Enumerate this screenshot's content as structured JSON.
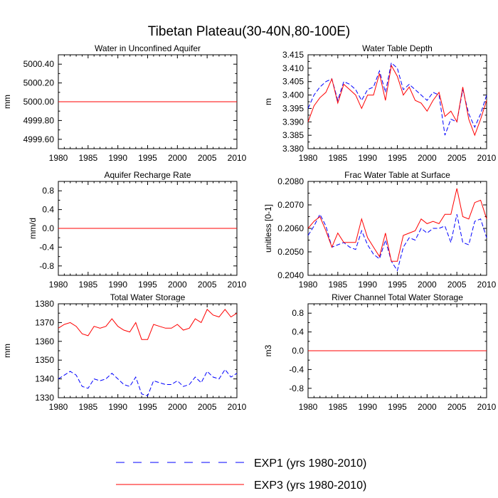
{
  "figure": {
    "title": "Tibetan Plateau(30-40N,80-100E)",
    "legend": [
      {
        "label": "EXP1 (yrs 1980-2010)",
        "color": "#0000ff",
        "style": "dashed"
      },
      {
        "label": "EXP3 (yrs 1980-2010)",
        "color": "#ff0000",
        "style": "solid"
      }
    ],
    "colors": {
      "exp1": "#0000ff",
      "exp3": "#ff0000"
    }
  },
  "chart_data": [
    {
      "type": "line",
      "title": "Water in Unconfined Aquifer",
      "xlabel": "",
      "ylabel": "mm",
      "xlim": [
        1980,
        2010
      ],
      "ylim": [
        4999.5,
        5000.5
      ],
      "xticks": [
        1980,
        1985,
        1990,
        1995,
        2000,
        2005,
        2010
      ],
      "yticks": [
        4999.6,
        4999.8,
        5000.0,
        5000.2,
        5000.4
      ],
      "ytick_labels": [
        "4999.60",
        "4999.80",
        "5000.00",
        "5000.20",
        "5000.40"
      ],
      "x": [
        1980,
        1981,
        1982,
        1983,
        1984,
        1985,
        1986,
        1987,
        1988,
        1989,
        1990,
        1991,
        1992,
        1993,
        1994,
        1995,
        1996,
        1997,
        1998,
        1999,
        2000,
        2001,
        2002,
        2003,
        2004,
        2005,
        2006,
        2007,
        2008,
        2009,
        2010
      ],
      "series": [
        {
          "name": "EXP1 (yrs 1980-2010)",
          "values": [
            5000,
            5000,
            5000,
            5000,
            5000,
            5000,
            5000,
            5000,
            5000,
            5000,
            5000,
            5000,
            5000,
            5000,
            5000,
            5000,
            5000,
            5000,
            5000,
            5000,
            5000,
            5000,
            5000,
            5000,
            5000,
            5000,
            5000,
            5000,
            5000,
            5000,
            5000
          ]
        },
        {
          "name": "EXP3 (yrs 1980-2010)",
          "values": [
            5000,
            5000,
            5000,
            5000,
            5000,
            5000,
            5000,
            5000,
            5000,
            5000,
            5000,
            5000,
            5000,
            5000,
            5000,
            5000,
            5000,
            5000,
            5000,
            5000,
            5000,
            5000,
            5000,
            5000,
            5000,
            5000,
            5000,
            5000,
            5000,
            5000,
            5000
          ]
        }
      ]
    },
    {
      "type": "line",
      "title": "Water Table Depth",
      "xlabel": "",
      "ylabel": "m",
      "xlim": [
        1980,
        2010
      ],
      "ylim": [
        3.38,
        3.415
      ],
      "xticks": [
        1980,
        1985,
        1990,
        1995,
        2000,
        2005,
        2010
      ],
      "yticks": [
        3.38,
        3.385,
        3.39,
        3.395,
        3.4,
        3.405,
        3.41,
        3.415
      ],
      "ytick_labels": [
        "3.380",
        "3.385",
        "3.390",
        "3.395",
        "3.400",
        "3.405",
        "3.410",
        "3.415"
      ],
      "x": [
        1980,
        1981,
        1982,
        1983,
        1984,
        1985,
        1986,
        1987,
        1988,
        1989,
        1990,
        1991,
        1992,
        1993,
        1994,
        1995,
        1996,
        1997,
        1998,
        1999,
        2000,
        2001,
        2002,
        2003,
        2004,
        2005,
        2006,
        2007,
        2008,
        2009,
        2010
      ],
      "series": [
        {
          "name": "EXP1 (yrs 1980-2010)",
          "values": [
            3.395,
            3.4,
            3.403,
            3.405,
            3.406,
            3.398,
            3.405,
            3.404,
            3.402,
            3.398,
            3.402,
            3.403,
            3.409,
            3.401,
            3.412,
            3.41,
            3.402,
            3.404,
            3.402,
            3.4,
            3.398,
            3.401,
            3.4,
            3.385,
            3.391,
            3.39,
            3.402,
            3.393,
            3.388,
            3.393,
            3.4
          ]
        },
        {
          "name": "EXP3 (yrs 1980-2010)",
          "values": [
            3.39,
            3.396,
            3.399,
            3.401,
            3.406,
            3.397,
            3.404,
            3.402,
            3.4,
            3.395,
            3.4,
            3.4,
            3.408,
            3.398,
            3.411,
            3.407,
            3.4,
            3.403,
            3.398,
            3.397,
            3.394,
            3.398,
            3.401,
            3.392,
            3.394,
            3.39,
            3.403,
            3.391,
            3.385,
            3.391,
            3.398
          ]
        }
      ]
    },
    {
      "type": "line",
      "title": "Aquifer Recharge Rate",
      "xlabel": "",
      "ylabel": "mm/d",
      "xlim": [
        1980,
        2010
      ],
      "ylim": [
        -1.0,
        1.0
      ],
      "xticks": [
        1980,
        1985,
        1990,
        1995,
        2000,
        2005,
        2010
      ],
      "yticks": [
        -0.8,
        -0.4,
        0.0,
        0.4,
        0.8
      ],
      "ytick_labels": [
        "-0.8",
        "-0.4",
        "0.0",
        "0.4",
        "0.8"
      ],
      "x": [
        1980,
        1981,
        1982,
        1983,
        1984,
        1985,
        1986,
        1987,
        1988,
        1989,
        1990,
        1991,
        1992,
        1993,
        1994,
        1995,
        1996,
        1997,
        1998,
        1999,
        2000,
        2001,
        2002,
        2003,
        2004,
        2005,
        2006,
        2007,
        2008,
        2009,
        2010
      ],
      "series": [
        {
          "name": "EXP1 (yrs 1980-2010)",
          "values": [
            0,
            0,
            0,
            0,
            0,
            0,
            0,
            0,
            0,
            0,
            0,
            0,
            0,
            0,
            0,
            0,
            0,
            0,
            0,
            0,
            0,
            0,
            0,
            0,
            0,
            0,
            0,
            0,
            0,
            0,
            0
          ]
        },
        {
          "name": "EXP3 (yrs 1980-2010)",
          "values": [
            0,
            0,
            0,
            0,
            0,
            0,
            0,
            0,
            0,
            0,
            0,
            0,
            0,
            0,
            0,
            0,
            0,
            0,
            0,
            0,
            0,
            0,
            0,
            0,
            0,
            0,
            0,
            0,
            0,
            0,
            0
          ]
        }
      ]
    },
    {
      "type": "line",
      "title": "Frac Water Table at Surface",
      "xlabel": "",
      "ylabel": "unitless [0-1]",
      "xlim": [
        1980,
        2010
      ],
      "ylim": [
        0.204,
        0.208
      ],
      "xticks": [
        1980,
        1985,
        1990,
        1995,
        2000,
        2005,
        2010
      ],
      "yticks": [
        0.204,
        0.205,
        0.206,
        0.207,
        0.208
      ],
      "ytick_labels": [
        "0.2040",
        "0.2050",
        "0.2060",
        "0.2070",
        "0.2080"
      ],
      "x": [
        1980,
        1981,
        1982,
        1983,
        1984,
        1985,
        1986,
        1987,
        1988,
        1989,
        1990,
        1991,
        1992,
        1993,
        1994,
        1995,
        1996,
        1997,
        1998,
        1999,
        2000,
        2001,
        2002,
        2003,
        2004,
        2005,
        2006,
        2007,
        2008,
        2009,
        2010
      ],
      "series": [
        {
          "name": "EXP1 (yrs 1980-2010)",
          "values": [
            0.2057,
            0.2061,
            0.2066,
            0.2061,
            0.2052,
            0.2053,
            0.2054,
            0.2052,
            0.2051,
            0.2059,
            0.2053,
            0.2049,
            0.2047,
            0.2055,
            0.2046,
            0.2042,
            0.2052,
            0.2056,
            0.2055,
            0.206,
            0.2058,
            0.206,
            0.206,
            0.2061,
            0.2054,
            0.2066,
            0.2054,
            0.2053,
            0.2063,
            0.2064,
            0.2056
          ]
        },
        {
          "name": "EXP3 (yrs 1980-2010)",
          "values": [
            0.206,
            0.2063,
            0.2065,
            0.2059,
            0.2052,
            0.2058,
            0.2054,
            0.2054,
            0.2054,
            0.2064,
            0.2056,
            0.2052,
            0.2048,
            0.2058,
            0.2046,
            0.2046,
            0.2057,
            0.2058,
            0.2059,
            0.2064,
            0.2062,
            0.2063,
            0.2062,
            0.2066,
            0.2066,
            0.2077,
            0.2065,
            0.2064,
            0.2071,
            0.2072,
            0.2064
          ]
        }
      ]
    },
    {
      "type": "line",
      "title": "Total Water Storage",
      "xlabel": "",
      "ylabel": "mm",
      "xlim": [
        1980,
        2010
      ],
      "ylim": [
        1330,
        1380
      ],
      "xticks": [
        1980,
        1985,
        1990,
        1995,
        2000,
        2005,
        2010
      ],
      "yticks": [
        1330,
        1340,
        1350,
        1360,
        1370,
        1380
      ],
      "ytick_labels": [
        "1330",
        "1340",
        "1350",
        "1360",
        "1370",
        "1380"
      ],
      "x": [
        1980,
        1981,
        1982,
        1983,
        1984,
        1985,
        1986,
        1987,
        1988,
        1989,
        1990,
        1991,
        1992,
        1993,
        1994,
        1995,
        1996,
        1997,
        1998,
        1999,
        2000,
        2001,
        2002,
        2003,
        2004,
        2005,
        2006,
        2007,
        2008,
        2009,
        2010
      ],
      "series": [
        {
          "name": "EXP1 (yrs 1980-2010)",
          "values": [
            1340,
            1342,
            1344,
            1342,
            1336,
            1335,
            1340,
            1339,
            1340,
            1343,
            1340,
            1337,
            1336,
            1341,
            1332,
            1331,
            1339,
            1338,
            1337,
            1337,
            1339,
            1336,
            1337,
            1341,
            1338,
            1344,
            1341,
            1340,
            1345,
            1341,
            1343
          ]
        },
        {
          "name": "EXP3 (yrs 1980-2010)",
          "values": [
            1367,
            1369,
            1370,
            1368,
            1364,
            1363,
            1368,
            1367,
            1368,
            1372,
            1368,
            1366,
            1365,
            1370,
            1361,
            1361,
            1369,
            1368,
            1367,
            1367,
            1369,
            1366,
            1367,
            1372,
            1370,
            1377,
            1374,
            1373,
            1377,
            1373,
            1375
          ]
        }
      ]
    },
    {
      "type": "line",
      "title": "River Channel Total Water Storage",
      "xlabel": "",
      "ylabel": "m3",
      "xlim": [
        1980,
        2010
      ],
      "ylim": [
        -1.0,
        1.0
      ],
      "xticks": [
        1980,
        1985,
        1990,
        1995,
        2000,
        2005,
        2010
      ],
      "yticks": [
        -0.8,
        -0.4,
        0.0,
        0.4,
        0.8
      ],
      "ytick_labels": [
        "-0.8",
        "-0.4",
        "0.0",
        "0.4",
        "0.8"
      ],
      "x": [
        1980,
        1981,
        1982,
        1983,
        1984,
        1985,
        1986,
        1987,
        1988,
        1989,
        1990,
        1991,
        1992,
        1993,
        1994,
        1995,
        1996,
        1997,
        1998,
        1999,
        2000,
        2001,
        2002,
        2003,
        2004,
        2005,
        2006,
        2007,
        2008,
        2009,
        2010
      ],
      "series": [
        {
          "name": "EXP1 (yrs 1980-2010)",
          "values": [
            0,
            0,
            0,
            0,
            0,
            0,
            0,
            0,
            0,
            0,
            0,
            0,
            0,
            0,
            0,
            0,
            0,
            0,
            0,
            0,
            0,
            0,
            0,
            0,
            0,
            0,
            0,
            0,
            0,
            0,
            0
          ]
        },
        {
          "name": "EXP3 (yrs 1980-2010)",
          "values": [
            0,
            0,
            0,
            0,
            0,
            0,
            0,
            0,
            0,
            0,
            0,
            0,
            0,
            0,
            0,
            0,
            0,
            0,
            0,
            0,
            0,
            0,
            0,
            0,
            0,
            0,
            0,
            0,
            0,
            0,
            0
          ]
        }
      ]
    }
  ]
}
